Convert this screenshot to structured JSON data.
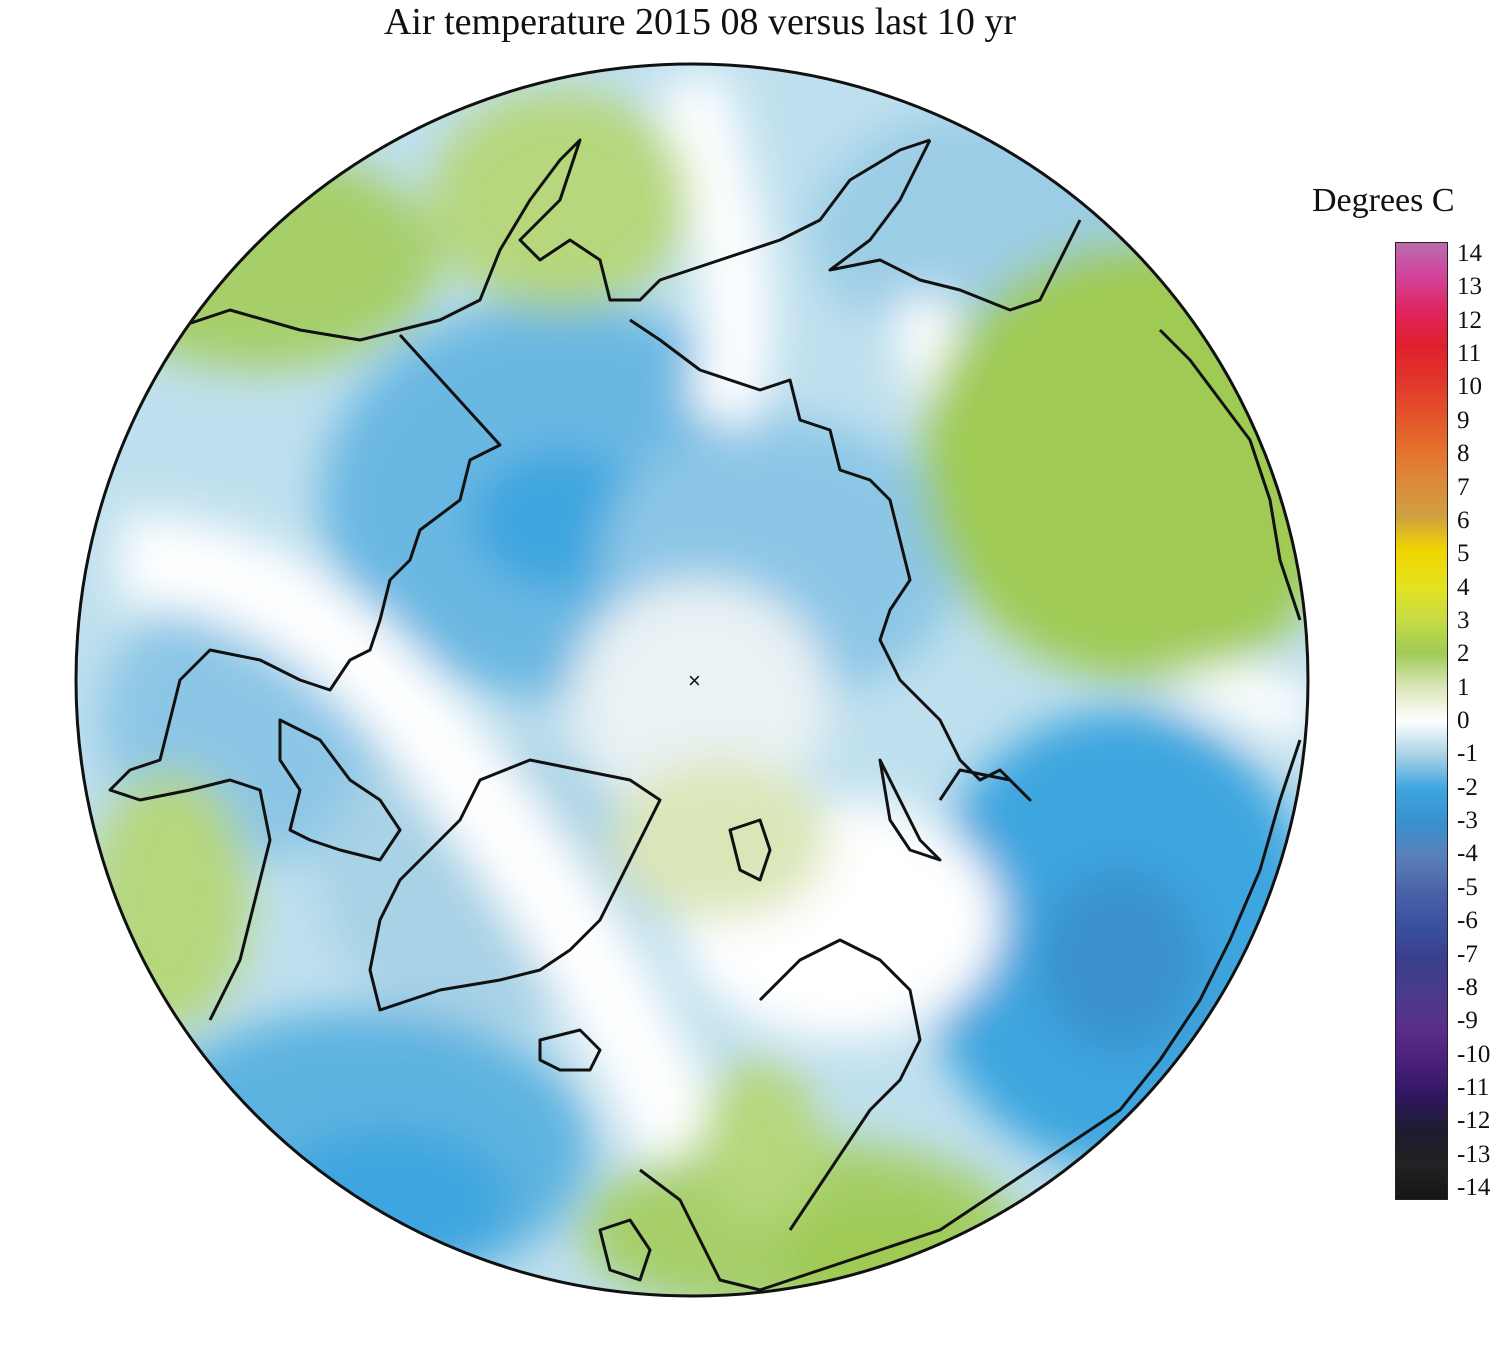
{
  "title": "Air temperature 2015 08 versus last 10 yr",
  "legend": {
    "units": "Degrees C",
    "ticks": [
      "14",
      "13",
      "12",
      "11",
      "10",
      "9",
      "8",
      "7",
      "6",
      "5",
      "4",
      "3",
      "2",
      "1",
      "0",
      "-1",
      "-2",
      "-3",
      "-4",
      "-5",
      "-6",
      "-7",
      "-8",
      "-9",
      "-10",
      "-11",
      "-12",
      "-13",
      "-14"
    ],
    "colors": {
      "14": "#b96cae",
      "13": "#d2429a",
      "12": "#e0245f",
      "11": "#e01f2d",
      "10": "#e0352c",
      "9": "#e4522c",
      "8": "#e56f2d",
      "7": "#dd8a3a",
      "6": "#cfa040",
      "5": "#f0d400",
      "4": "#e4e21d",
      "3": "#c8dc44",
      "2": "#9fcb55",
      "1": "#dbe6b8",
      "0": "#ffffff",
      "-1": "#a8d2e6",
      "-2": "#3ca5df",
      "-3": "#3a90cf",
      "-4": "#5a7fb8",
      "-5": "#4a62a8",
      "-6": "#3a50a0",
      "-7": "#3a3e8c",
      "-8": "#4a3a8c",
      "-9": "#5a2e8a",
      "-10": "#4a207a",
      "-11": "#301660",
      "-12": "#1c1c30",
      "-13": "#222222",
      "-14": "#161616"
    }
  },
  "map": {
    "projection": "north-polar-stereographic",
    "pole_marker": "×"
  }
}
